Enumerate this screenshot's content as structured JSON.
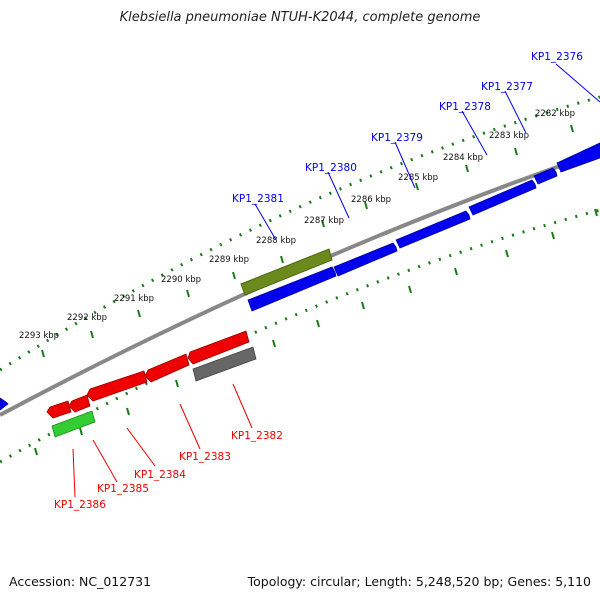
{
  "title": "Klebsiella pneumoniae NTUH-K2044, complete genome",
  "accession_label": "Accession: NC_012731",
  "summary_label": "Topology: circular; Length: 5,248,520 bp; Genes: 5,110",
  "colors": {
    "forward_gene": "#0000ee",
    "reverse_gene": "#ee0000",
    "olive_feature": "#6b8a1e",
    "green_feature": "#33cc33",
    "gray_feature": "#666666",
    "backbone": "#888888",
    "tick": "#1a7a1a"
  },
  "scale_ticks": [
    {
      "label": "2282 kbp",
      "kbp": 2282
    },
    {
      "label": "2283 kbp",
      "kbp": 2283
    },
    {
      "label": "2284 kbp",
      "kbp": 2284
    },
    {
      "label": "2285 kbp",
      "kbp": 2285
    },
    {
      "label": "2286 kbp",
      "kbp": 2286
    },
    {
      "label": "2287 kbp",
      "kbp": 2287
    },
    {
      "label": "2288 kbp",
      "kbp": 2288
    },
    {
      "label": "2289 kbp",
      "kbp": 2289
    },
    {
      "label": "2290 kbp",
      "kbp": 2290
    },
    {
      "label": "2291 kbp",
      "kbp": 2291
    },
    {
      "label": "2292 kbp",
      "kbp": 2292
    },
    {
      "label": "2293 kbp",
      "kbp": 2293
    }
  ],
  "forward_gene_labels": [
    "KP1_2376",
    "KP1_2377",
    "KP1_2378",
    "KP1_2379",
    "KP1_2380",
    "KP1_2381"
  ],
  "reverse_gene_labels": [
    "KP1_2382",
    "KP1_2383",
    "KP1_2384",
    "KP1_2385",
    "KP1_2386"
  ]
}
